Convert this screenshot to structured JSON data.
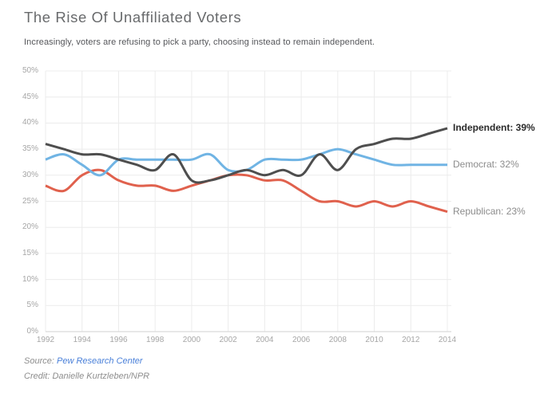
{
  "header": {
    "title": "The Rise Of Unaffiliated Voters",
    "subtitle": "Increasingly, voters are refusing to pick a party, choosing instead to remain independent."
  },
  "chart_data": {
    "type": "line",
    "title": "The Rise Of Unaffiliated Voters",
    "x": [
      1992,
      1993,
      1994,
      1995,
      1996,
      1997,
      1998,
      1999,
      2000,
      2001,
      2002,
      2003,
      2004,
      2005,
      2006,
      2007,
      2008,
      2009,
      2010,
      2011,
      2012,
      2013,
      2014
    ],
    "series": [
      {
        "name": "Independent",
        "label": "Independent: 39%",
        "color": "#4e4e4e",
        "label_color": "#2b2b2b",
        "values": [
          36,
          35,
          34,
          34,
          33,
          32,
          31,
          34,
          29,
          29,
          30,
          31,
          30,
          31,
          30,
          34,
          31,
          35,
          36,
          37,
          37,
          38,
          39
        ]
      },
      {
        "name": "Democrat",
        "label": "Democrat: 32%",
        "color": "#70b4e4",
        "label_color": "#8c8c8c",
        "values": [
          33,
          34,
          32,
          30,
          33,
          33,
          33,
          33,
          33,
          34,
          31,
          31,
          33,
          33,
          33,
          34,
          35,
          34,
          33,
          32,
          32,
          32,
          32
        ]
      },
      {
        "name": "Republican",
        "label": "Republican: 23%",
        "color": "#e0614d",
        "label_color": "#8c8c8c",
        "values": [
          28,
          27,
          30,
          31,
          29,
          28,
          28,
          27,
          28,
          29,
          30,
          30,
          29,
          29,
          27,
          25,
          25,
          24,
          25,
          24,
          25,
          24,
          23
        ]
      }
    ],
    "xticks": [
      1992,
      1994,
      1996,
      1998,
      2000,
      2002,
      2004,
      2006,
      2008,
      2010,
      2012,
      2014
    ],
    "yticks": [
      0,
      5,
      10,
      15,
      20,
      25,
      30,
      35,
      40,
      45,
      50
    ],
    "ytick_suffix": "%",
    "xlim": [
      1992,
      2014
    ],
    "ylim": [
      0,
      50
    ],
    "grid": true,
    "legend_position": "right-end-labels",
    "xlabel": "",
    "ylabel": ""
  },
  "footer": {
    "source_label": "Source:",
    "source_link": "Pew Research Center",
    "credit": "Credit: Danielle Kurtzleben/NPR"
  },
  "colors": {
    "background": "#ffffff",
    "grid": "#ececec",
    "axis": "#d2d2d2",
    "tick_text": "#a6a6a6",
    "title_text": "#686a6c",
    "subtitle_text": "#55565a",
    "footer_text": "#8e8e8e",
    "link": "#4a80d9"
  }
}
